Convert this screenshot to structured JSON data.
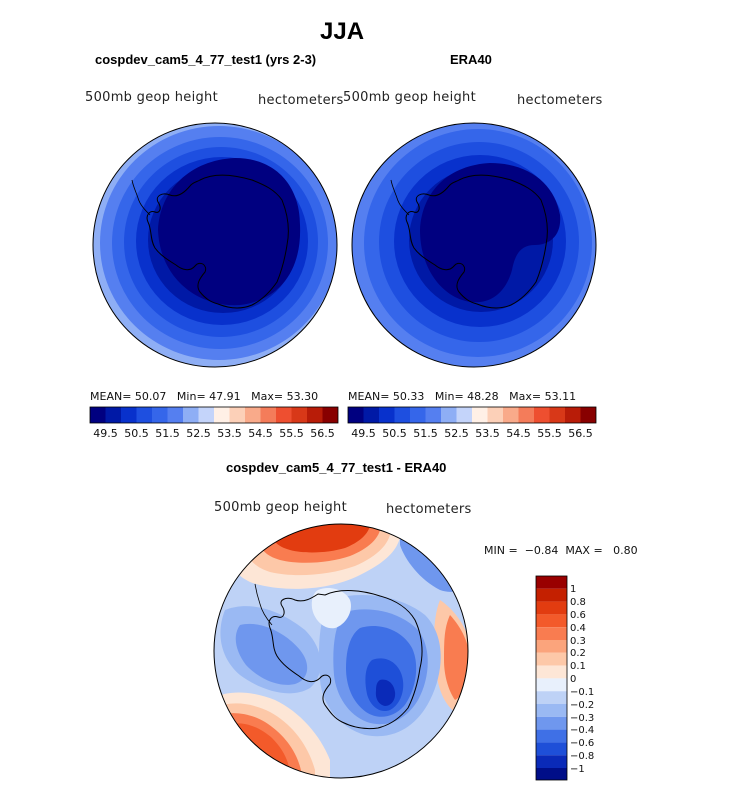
{
  "figure": {
    "title": "JJA",
    "field_label": "500mb geop height",
    "units_label": "hectometers"
  },
  "chart_data": [
    {
      "type": "heatmap",
      "projection": "south-polar stereographic",
      "title": "cospdev_cam5_4_77_test1 (yrs 2-3)",
      "left_label": "500mb geop height",
      "right_label": "hectometers",
      "stats": {
        "mean_label": "MEAN=",
        "mean": "50.07",
        "min_label": "Min=",
        "min": "47.91",
        "max_label": "Max=",
        "max": "53.30"
      },
      "colorbar_ticks": [
        "49.5",
        "50.5",
        "51.5",
        "52.5",
        "53.5",
        "54.5",
        "55.5",
        "56.5"
      ],
      "contour_levels": [
        49.0,
        49.5,
        50.0,
        50.5,
        51.0,
        51.5,
        52.0,
        52.5,
        53.0,
        53.5,
        54.0,
        54.5,
        55.0,
        55.5,
        56.0,
        56.5
      ],
      "colors": [
        "#000080",
        "#0019a6",
        "#0831cc",
        "#1e4fe0",
        "#3566ea",
        "#557ff0",
        "#8eaef5",
        "#c4d4fa",
        "#fff0e6",
        "#fcd0b8",
        "#f9aa8a",
        "#f47c5a",
        "#ee4f30",
        "#d83818",
        "#b81c08",
        "#880000"
      ]
    },
    {
      "type": "heatmap",
      "projection": "south-polar stereographic",
      "title": "ERA40",
      "left_label": "500mb geop height",
      "right_label": "hectometers",
      "stats": {
        "mean_label": "MEAN=",
        "mean": "50.33",
        "min_label": "Min=",
        "min": "48.28",
        "max_label": "Max=",
        "max": "53.11"
      },
      "colorbar_ticks": [
        "49.5",
        "50.5",
        "51.5",
        "52.5",
        "53.5",
        "54.5",
        "55.5",
        "56.5"
      ],
      "contour_levels": [
        49.0,
        49.5,
        50.0,
        50.5,
        51.0,
        51.5,
        52.0,
        52.5,
        53.0,
        53.5,
        54.0,
        54.5,
        55.0,
        55.5,
        56.0,
        56.5
      ],
      "colors": [
        "#000080",
        "#0019a6",
        "#0831cc",
        "#1e4fe0",
        "#3566ea",
        "#557ff0",
        "#8eaef5",
        "#c4d4fa",
        "#fff0e6",
        "#fcd0b8",
        "#f9aa8a",
        "#f47c5a",
        "#ee4f30",
        "#d83818",
        "#b81c08",
        "#880000"
      ]
    },
    {
      "type": "heatmap",
      "projection": "south-polar stereographic",
      "title": "cospdev_cam5_4_77_test1 - ERA40",
      "left_label": "500mb geop height",
      "right_label": "hectometers",
      "stats": {
        "min_label": "MIN =",
        "min": "−0.84",
        "max_label": "MAX =",
        "max": "0.80"
      },
      "colorbar_ticks": [
        "1",
        "0.8",
        "0.6",
        "0.4",
        "0.3",
        "0.2",
        "0.1",
        "0",
        "−0.1",
        "−0.2",
        "−0.3",
        "−0.4",
        "−0.6",
        "−0.8",
        "−1"
      ],
      "contour_levels": [
        -1,
        -0.8,
        -0.6,
        -0.4,
        -0.3,
        -0.2,
        -0.1,
        0,
        0.1,
        0.2,
        0.3,
        0.4,
        0.6,
        0.8,
        1
      ],
      "colors_top_to_bottom": [
        "#990000",
        "#c42000",
        "#e23c10",
        "#f35a2a",
        "#f97c50",
        "#fba47c",
        "#fdc8a8",
        "#fde6d6",
        "#e8f0fc",
        "#bed2f6",
        "#9ab9f3",
        "#6f97ee",
        "#3f70e6",
        "#1e4fd8",
        "#0a2ab8",
        "#000e88"
      ]
    }
  ]
}
